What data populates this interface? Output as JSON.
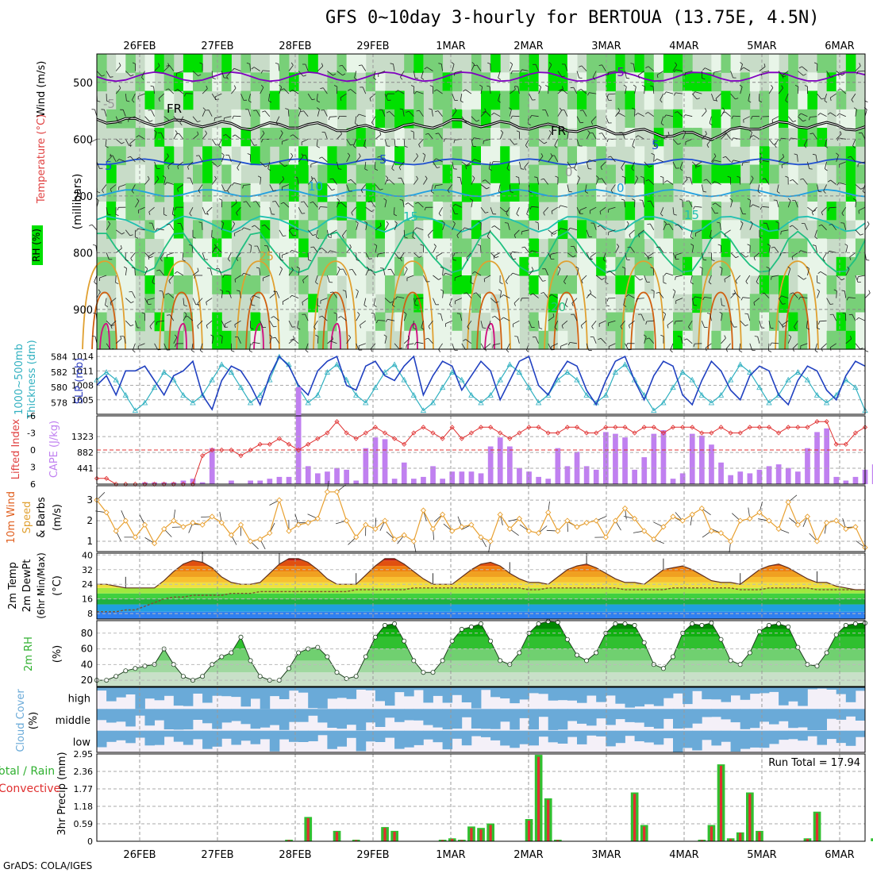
{
  "title": "GFS 0~10day 3-hourly for BERTOUA (13.75E, 4.5N)",
  "credit": "GrADS: COLA/IGES",
  "colors": {
    "rh_light": "#e8f5e8",
    "rh_mid": "#c8dcc8",
    "rh_green": "#78d078",
    "rh_bright": "#00e000",
    "temp_purple": "#8000c0",
    "freeze": "#000000",
    "temp_blue": "#2050d0",
    "temp_lblue": "#20a0e0",
    "temp_teal": "#20c0b0",
    "temp_green": "#20c080",
    "temp_orange": "#e0a030",
    "temp_dorange": "#d06010",
    "temp_magenta": "#d01080",
    "slp": "#2040c0",
    "thick": "#30b0c0",
    "li": "#e03030",
    "cape": "#c080f0",
    "wind": "#e8a030",
    "rh2m": "#30b030",
    "cloud": "#6aaad8",
    "cloud_bg": "#f4f0f8",
    "precip_total": "#30c030",
    "precip_conv": "#e03030"
  },
  "chart_data": [
    {
      "type": "heatmap",
      "name": "pressure-time cross section",
      "x_dates": [
        "26FEB",
        "27FEB",
        "28FEB",
        "29FEB",
        "1MAR",
        "2MAR",
        "3MAR",
        "4MAR",
        "5MAR",
        "6MAR"
      ],
      "ylabel": "(millibars)",
      "side_labels": [
        "Wind (m/s)",
        "Temperature (°C)",
        "RH (%)"
      ],
      "yticks": [
        500,
        600,
        700,
        800,
        900
      ],
      "ylim": [
        450,
        970
      ],
      "contour_labels": [
        "-5",
        "FR",
        "FR",
        "5",
        "5",
        "5",
        "10",
        "0",
        "15",
        "15",
        "25",
        "20",
        "-5",
        "0"
      ],
      "freezing_level_mb": [
        565,
        570,
        572,
        578,
        575,
        582,
        580,
        570,
        575,
        580,
        585,
        590,
        595,
        575,
        575,
        580
      ]
    },
    {
      "type": "line",
      "name": "SLP and thickness",
      "ylabel_left": "1000~500mb Thickness (dm)",
      "ylabel_right": "SLP (mb)",
      "yticks_left": [
        578,
        580,
        582,
        584
      ],
      "yticks_right": [
        1005,
        1008,
        1011,
        1014
      ],
      "slp": [
        1008,
        1010,
        1006,
        1011,
        1011,
        1012,
        1009,
        1006,
        1010,
        1011,
        1013,
        1006,
        1003,
        1009,
        1012,
        1011,
        1008,
        1004,
        1010,
        1014,
        1012,
        1008,
        1006,
        1011,
        1013,
        1014,
        1008,
        1007,
        1012,
        1013,
        1010,
        1009,
        1012,
        1014,
        1006,
        1010,
        1013,
        1012,
        1007,
        1010,
        1013,
        1011,
        1005,
        1009,
        1013,
        1014,
        1008,
        1006,
        1010,
        1013,
        1012,
        1007,
        1004,
        1009,
        1013,
        1014,
        1009,
        1005,
        1010,
        1013,
        1012,
        1006,
        1004,
        1009,
        1013,
        1011,
        1007,
        1005,
        1010,
        1012,
        1011,
        1006,
        1004,
        1009,
        1012,
        1011,
        1007,
        1005,
        1010,
        1013,
        1012
      ],
      "thickness": [
        581,
        582,
        581,
        579,
        577,
        578,
        580,
        582,
        581,
        579,
        578,
        579,
        581,
        583,
        582,
        580,
        578,
        579,
        581,
        584,
        583,
        580,
        578,
        579,
        582,
        583,
        581,
        579,
        578,
        580,
        582,
        583,
        581,
        579,
        577,
        578,
        580,
        582,
        581,
        579,
        578,
        579,
        581,
        583,
        582,
        580,
        578,
        579,
        581,
        582,
        581,
        579,
        578,
        579,
        582,
        583,
        581,
        579,
        577,
        578,
        580,
        582,
        581,
        579,
        578,
        579,
        581,
        583,
        582,
        580,
        578,
        579,
        581,
        582,
        581,
        579,
        578,
        579,
        581,
        580,
        577
      ]
    },
    {
      "type": "bar",
      "name": "Lifted index and CAPE",
      "ylabel_left": "Lifted Index",
      "ylabel_right": "CAPE (J/kg)",
      "yticks_left": [
        "-6",
        "-3",
        "0",
        "3",
        "6"
      ],
      "yticks_right": [
        441,
        882,
        1323
      ],
      "lifted_index": [
        5,
        5,
        6,
        6,
        6,
        6,
        6,
        6,
        6,
        6,
        6,
        1,
        0,
        0,
        0,
        1,
        0,
        -1,
        -1,
        -2,
        -1,
        0,
        -1,
        -2,
        -3,
        -5,
        -3,
        -2,
        -3,
        -4,
        -3,
        -2,
        -1,
        -3,
        -4,
        -3,
        -2,
        -4,
        -2,
        -3,
        -4,
        -4,
        -3,
        -2,
        -3,
        -4,
        -4,
        -3,
        -3,
        -4,
        -4,
        -3,
        -3,
        -4,
        -4,
        -4,
        -3,
        -4,
        -4,
        -3,
        -4,
        -4,
        -4,
        -3,
        -3,
        -4,
        -3,
        -3,
        -4,
        -4,
        -4,
        -3,
        -4,
        -4,
        -4,
        -5,
        -5,
        -1,
        -1,
        -3,
        -4
      ],
      "cape": [
        0,
        0,
        0,
        0,
        0,
        50,
        50,
        50,
        50,
        100,
        150,
        50,
        1000,
        0,
        100,
        0,
        100,
        100,
        150,
        200,
        200,
        2700,
        500,
        300,
        350,
        450,
        400,
        100,
        1000,
        1300,
        1250,
        150,
        600,
        150,
        200,
        500,
        150,
        350,
        350,
        350,
        300,
        1050,
        1300,
        1050,
        450,
        350,
        200,
        150,
        1000,
        500,
        900,
        500,
        400,
        1450,
        1400,
        1300,
        400,
        750,
        1400,
        1500,
        150,
        300,
        1400,
        1350,
        1100,
        600,
        250,
        350,
        300,
        400,
        500,
        550,
        450,
        350,
        1000,
        1450,
        1550,
        200,
        100,
        200,
        400,
        550
      ]
    },
    {
      "type": "line",
      "name": "10m wind",
      "ylabel": "10m Wind Speed & Barbs (m/s)",
      "yticks": [
        1,
        2,
        3
      ],
      "ylim": [
        0.5,
        3.7
      ],
      "values": [
        3.0,
        2.4,
        1.5,
        2.0,
        1.2,
        1.8,
        0.9,
        1.6,
        2.0,
        1.7,
        1.9,
        1.8,
        2.2,
        1.9,
        1.3,
        1.8,
        1.0,
        1.1,
        1.4,
        3.0,
        1.5,
        1.8,
        1.9,
        2.1,
        3.4,
        3.4,
        2.0,
        1.2,
        1.8,
        1.6,
        2.0,
        1.1,
        1.3,
        1.0,
        2.5,
        1.6,
        2.3,
        1.5,
        1.7,
        1.8,
        1.2,
        1.0,
        2.3,
        1.6,
        2.1,
        1.5,
        1.4,
        2.4,
        1.5,
        2.0,
        1.7,
        1.9,
        2.0,
        1.2,
        2.0,
        2.6,
        2.1,
        1.5,
        1.1,
        1.7,
        2.2,
        2.0,
        2.3,
        2.6,
        1.5,
        1.4,
        1.0,
        2.0,
        2.1,
        2.4,
        2.0,
        1.6,
        2.9,
        1.8,
        2.2,
        1.0,
        1.9,
        2.0,
        1.6,
        1.7,
        0.7
      ]
    },
    {
      "type": "area",
      "name": "2m temperature and dewpoint",
      "ylabel": "2m Temp 2m DewPt (6hr Min/Max) (°C)",
      "yticks": [
        8,
        16,
        24,
        32,
        40
      ],
      "ylim": [
        5,
        41
      ],
      "temp": [
        24,
        24,
        23,
        22,
        22,
        22,
        22,
        26,
        31,
        35,
        37,
        36,
        33,
        28,
        25,
        24,
        24,
        25,
        30,
        35,
        38,
        38,
        36,
        32,
        27,
        24,
        24,
        24,
        29,
        34,
        38,
        38,
        35,
        31,
        27,
        24,
        24,
        24,
        28,
        32,
        35,
        36,
        34,
        30,
        27,
        25,
        25,
        24,
        28,
        32,
        34,
        35,
        33,
        30,
        27,
        25,
        25,
        24,
        28,
        32,
        33,
        34,
        32,
        29,
        26,
        25,
        25,
        24,
        28,
        32,
        34,
        35,
        33,
        30,
        27,
        25,
        25,
        23,
        22,
        21,
        21
      ],
      "dewpoint": [
        9,
        9,
        9,
        10,
        10,
        12,
        14,
        16,
        17,
        17,
        18,
        18,
        18,
        18,
        19,
        19,
        19,
        20,
        20,
        20,
        20,
        20,
        20,
        20,
        20,
        20,
        20,
        21,
        21,
        21,
        21,
        21,
        21,
        22,
        22,
        22,
        22,
        22,
        22,
        22,
        22,
        22,
        22,
        22,
        22,
        21,
        21,
        22,
        22,
        22,
        22,
        22,
        22,
        22,
        22,
        21,
        21,
        21,
        21,
        21,
        22,
        22,
        22,
        22,
        22,
        22,
        22,
        21,
        21,
        21,
        22,
        22,
        22,
        22,
        22,
        21,
        21,
        21,
        21,
        21,
        21
      ]
    },
    {
      "type": "area",
      "name": "2m RH",
      "ylabel": "2m RH (%)",
      "yticks": [
        20,
        40,
        60,
        80
      ],
      "ylim": [
        12,
        96
      ],
      "values": [
        20,
        20,
        25,
        32,
        35,
        38,
        40,
        60,
        40,
        25,
        20,
        25,
        40,
        50,
        55,
        75,
        45,
        25,
        20,
        20,
        35,
        55,
        60,
        62,
        50,
        30,
        22,
        25,
        50,
        75,
        90,
        92,
        70,
        45,
        30,
        30,
        45,
        70,
        85,
        88,
        92,
        70,
        45,
        40,
        55,
        80,
        92,
        95,
        94,
        72,
        52,
        45,
        55,
        80,
        92,
        92,
        90,
        68,
        40,
        35,
        50,
        80,
        92,
        90,
        93,
        72,
        45,
        40,
        55,
        82,
        90,
        92,
        88,
        62,
        40,
        38,
        55,
        78,
        90,
        92,
        93
      ],
      "sidebar": [
        "2m RH",
        "(%)"
      ]
    },
    {
      "type": "heatmap",
      "name": "cloud cover",
      "ylabel": "Cloud Cover (%)",
      "levels": [
        "high",
        "middle",
        "low"
      ]
    },
    {
      "type": "bar",
      "name": "3hr precipitation",
      "ylabel": "3hr Precip (mm)",
      "side_labels": [
        "Total / Rain",
        "Convective"
      ],
      "yticks": [
        "0",
        "0.59",
        "1.18",
        "1.77",
        "2.36",
        "2.95"
      ],
      "ylim": [
        0,
        2.95
      ],
      "annotation": "Run Total = 17.94",
      "total": [
        0,
        0,
        0,
        0,
        0,
        0,
        0,
        0,
        0,
        0,
        0,
        0,
        0,
        0,
        0,
        0,
        0,
        0,
        0,
        0,
        0.05,
        0,
        0.82,
        0,
        0,
        0.35,
        0,
        0.05,
        0,
        0,
        0.48,
        0.35,
        0,
        0,
        0,
        0,
        0.05,
        0.1,
        0.05,
        0.5,
        0.45,
        0.6,
        0,
        0,
        0,
        0.75,
        2.92,
        1.45,
        0.05,
        0,
        0,
        0,
        0,
        0,
        0,
        0,
        1.65,
        0.55,
        0,
        0,
        0,
        0,
        0,
        0.05,
        0.55,
        2.6,
        0.1,
        0.3,
        1.65,
        0.35,
        0,
        0,
        0,
        0,
        0.1,
        1.0,
        0,
        0,
        0,
        0,
        0,
        0.1
      ],
      "convective": [
        0,
        0,
        0,
        0,
        0,
        0,
        0,
        0,
        0,
        0,
        0,
        0,
        0,
        0,
        0,
        0,
        0,
        0,
        0,
        0,
        0.04,
        0,
        0.78,
        0,
        0,
        0.32,
        0,
        0.04,
        0,
        0,
        0.45,
        0.32,
        0,
        0,
        0,
        0,
        0.04,
        0.08,
        0.04,
        0.45,
        0.4,
        0.55,
        0,
        0,
        0,
        0.7,
        2.85,
        1.4,
        0.04,
        0,
        0,
        0,
        0,
        0,
        0,
        0,
        1.6,
        0.5,
        0,
        0,
        0,
        0,
        0,
        0.04,
        0.5,
        2.55,
        0.08,
        0.28,
        1.6,
        0.32,
        0,
        0,
        0,
        0,
        0.08,
        0.95,
        0,
        0,
        0,
        0,
        0,
        0.08
      ]
    }
  ]
}
